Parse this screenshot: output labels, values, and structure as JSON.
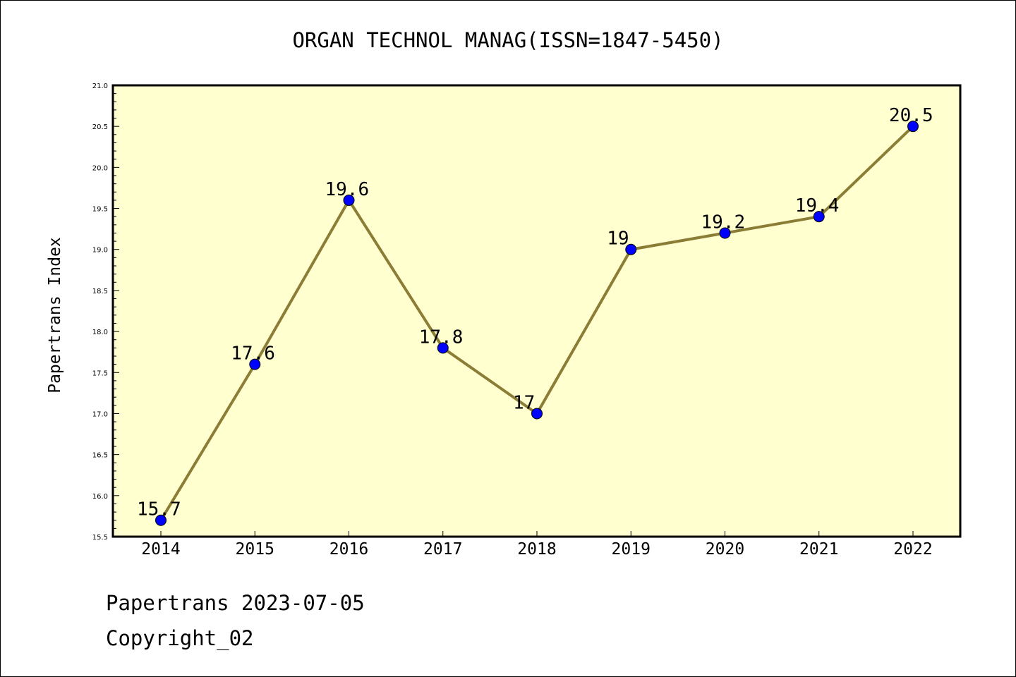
{
  "chart_data": {
    "type": "line",
    "title": "ORGAN TECHNOL MANAG(ISSN=1847-5450)",
    "xlabel": "",
    "ylabel": "Papertrans Index",
    "x": [
      "2014",
      "2015",
      "2016",
      "2017",
      "2018",
      "2019",
      "2020",
      "2021",
      "2022"
    ],
    "series": [
      {
        "values": [
          15.7,
          17.6,
          19.6,
          17.8,
          17,
          19,
          19.2,
          19.4,
          20.5
        ],
        "data_labels": [
          "15.7",
          "17.6",
          "19.6",
          "17.8",
          "17",
          "19",
          "19.2",
          "19.4",
          "20.5"
        ]
      }
    ],
    "ylim": [
      15.5,
      21.0
    ],
    "yticks": [
      "15.5",
      "16.0",
      "16.5",
      "17.0",
      "17.5",
      "18.0",
      "18.5",
      "19.0",
      "19.5",
      "20.0",
      "20.5",
      "21.0"
    ],
    "grid": false,
    "colors": {
      "plot_background": "#FFFFD0",
      "line": "#8B7D35",
      "marker": "#0000FF"
    }
  },
  "footer": {
    "line1": "Papertrans 2023-07-05",
    "line2": "Copyright_02"
  }
}
